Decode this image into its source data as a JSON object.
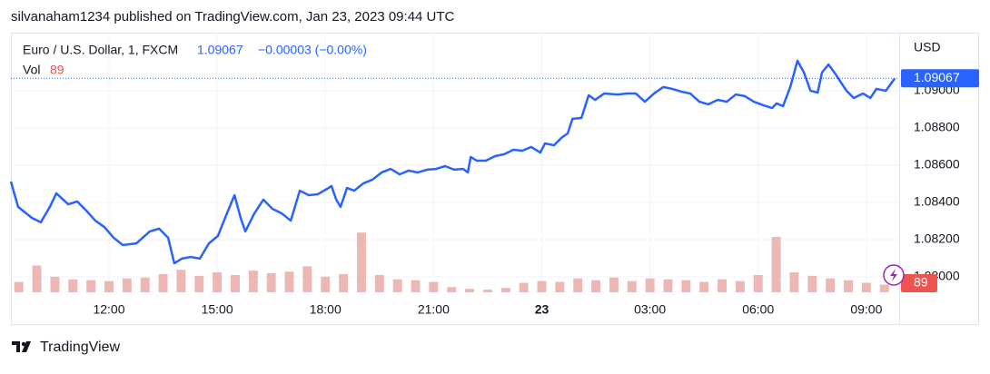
{
  "header": {
    "attribution": "silvanaham1234 published on TradingView.com, Jan 23, 2023 09:44 UTC",
    "brand": "TradingView"
  },
  "chart_data": {
    "type": "line",
    "currency": "USD",
    "change": "−0.00003 (−0.00%)",
    "xlim": [
      9.28,
      33.91
    ],
    "xticks": [
      {
        "value": 12,
        "label": "12:00"
      },
      {
        "value": 15,
        "label": "15:00"
      },
      {
        "value": 18,
        "label": "18:00"
      },
      {
        "value": 21,
        "label": "21:00"
      },
      {
        "value": 24,
        "label": "23"
      },
      {
        "value": 27,
        "label": "03:00"
      },
      {
        "value": 30,
        "label": "06:00"
      },
      {
        "value": 33,
        "label": "09:00"
      }
    ],
    "ylim": [
      1.07917,
      1.09312
    ],
    "yticks": [
      {
        "value": 1.08,
        "label": "1.08000"
      },
      {
        "value": 1.082,
        "label": "1.08200"
      },
      {
        "value": 1.084,
        "label": "1.08400"
      },
      {
        "value": 1.086,
        "label": "1.08600"
      },
      {
        "value": 1.088,
        "label": "1.08800"
      },
      {
        "value": 1.09,
        "label": "1.09000"
      }
    ],
    "y2lim": [
      0,
      3000
    ],
    "grid": true,
    "series": [
      {
        "name": "Euro / U.S. Dollar, 1, FXCM",
        "color": "#2962ff",
        "x": [
          9.28,
          9.48,
          9.86,
          10.11,
          10.36,
          10.54,
          10.87,
          11.12,
          11.37,
          11.62,
          11.87,
          12.13,
          12.38,
          12.76,
          13.13,
          13.39,
          13.64,
          13.81,
          14.02,
          14.27,
          14.52,
          14.77,
          15.02,
          15.27,
          15.48,
          15.65,
          15.78,
          16.03,
          16.28,
          16.53,
          16.79,
          17.04,
          17.29,
          17.54,
          17.79,
          18.05,
          18.17,
          18.3,
          18.42,
          18.6,
          18.8,
          19.05,
          19.3,
          19.56,
          19.81,
          20.06,
          20.31,
          20.56,
          20.82,
          21.07,
          21.32,
          21.57,
          21.82,
          21.95,
          22.03,
          22.2,
          22.45,
          22.71,
          22.96,
          23.21,
          23.46,
          23.71,
          23.96,
          24.09,
          24.34,
          24.54,
          24.72,
          24.85,
          25.1,
          25.3,
          25.48,
          25.73,
          26.11,
          26.36,
          26.61,
          26.86,
          27.11,
          27.37,
          27.62,
          27.87,
          28.12,
          28.37,
          28.62,
          28.88,
          29.13,
          29.38,
          29.63,
          29.88,
          30.14,
          30.39,
          30.51,
          30.69,
          30.89,
          31.09,
          31.27,
          31.45,
          31.65,
          31.77,
          31.95,
          32.15,
          32.28,
          32.45,
          32.65,
          32.91,
          33.11,
          33.28,
          33.54,
          33.79
        ],
        "values": [
          1.08512,
          1.08376,
          1.08317,
          1.08293,
          1.08376,
          1.08449,
          1.0839,
          1.08405,
          1.08356,
          1.08302,
          1.08268,
          1.0821,
          1.08171,
          1.0818,
          1.08244,
          1.08259,
          1.0821,
          1.08073,
          1.08098,
          1.08107,
          1.08098,
          1.0818,
          1.0822,
          1.08341,
          1.08439,
          1.08317,
          1.08244,
          1.08341,
          1.08415,
          1.08366,
          1.08341,
          1.08302,
          1.08463,
          1.08439,
          1.08444,
          1.08473,
          1.08488,
          1.08415,
          1.08376,
          1.08478,
          1.08463,
          1.08502,
          1.08522,
          1.08561,
          1.0858,
          1.08551,
          1.08571,
          1.08561,
          1.08576,
          1.0858,
          1.08595,
          1.08576,
          1.0858,
          1.08561,
          1.08644,
          1.08624,
          1.08624,
          1.08649,
          1.08659,
          1.08683,
          1.08678,
          1.08698,
          1.08668,
          1.08717,
          1.08707,
          1.08746,
          1.08771,
          1.08849,
          1.08854,
          1.08976,
          1.08951,
          1.08985,
          1.0898,
          1.08985,
          1.08985,
          1.08941,
          1.08985,
          1.0902,
          1.0901,
          1.08995,
          1.08985,
          1.08941,
          1.08927,
          1.08951,
          1.08941,
          1.0898,
          1.08971,
          1.08941,
          1.08922,
          1.08907,
          1.08932,
          1.08917,
          1.0902,
          1.09161,
          1.09098,
          1.09,
          1.0899,
          1.09098,
          1.09141,
          1.09088,
          1.09049,
          1.09,
          1.08961,
          1.08985,
          1.08961,
          1.0901,
          1.09,
          1.09067
        ]
      },
      {
        "name": "Vol",
        "color": "#e8a5a0",
        "axis": "y2",
        "x": [
          9.5,
          10,
          10.5,
          11,
          11.5,
          12,
          12.5,
          13,
          13.5,
          14,
          14.5,
          15,
          15.5,
          16,
          16.5,
          17,
          17.5,
          18,
          18.5,
          19,
          19.5,
          20,
          20.5,
          21,
          21.5,
          22,
          22.5,
          23,
          23.5,
          24,
          24.5,
          25,
          25.5,
          26,
          26.5,
          27,
          27.5,
          28,
          28.5,
          29,
          29.5,
          30,
          30.5,
          31,
          31.5,
          32,
          32.5,
          33,
          33.5
        ],
        "values": [
          120,
          310,
          180,
          150,
          140,
          130,
          160,
          170,
          210,
          260,
          190,
          230,
          200,
          250,
          220,
          240,
          300,
          180,
          210,
          690,
          200,
          150,
          140,
          120,
          60,
          40,
          30,
          50,
          110,
          130,
          120,
          160,
          140,
          170,
          130,
          160,
          150,
          140,
          120,
          150,
          130,
          200,
          640,
          230,
          190,
          160,
          140,
          110,
          89
        ]
      }
    ]
  }
}
